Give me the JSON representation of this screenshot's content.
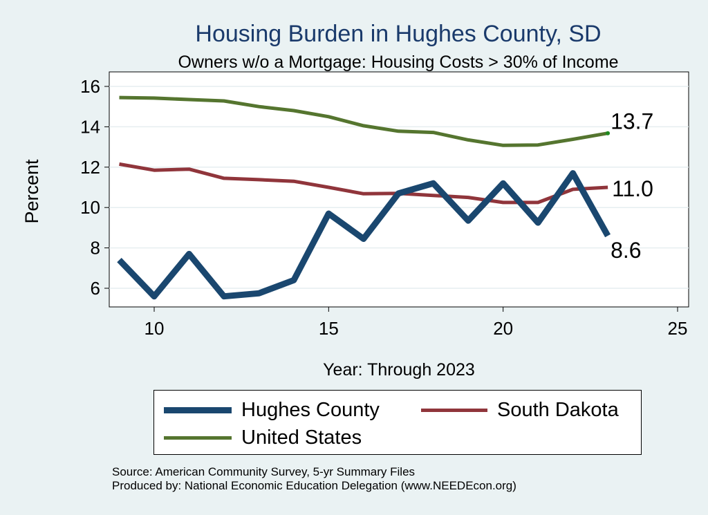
{
  "chart_data": {
    "type": "line",
    "title": "Housing Burden in Hughes County, SD",
    "subtitle": "Owners w/o a Mortgage: Housing Costs > 30% of Income",
    "xlabel": "Year: Through 2023",
    "ylabel": "Percent",
    "xlim": [
      9,
      25
    ],
    "ylim": [
      5,
      16.5
    ],
    "xticks": [
      10,
      15,
      20,
      25
    ],
    "yticks": [
      6,
      8,
      10,
      12,
      14,
      16
    ],
    "grid": true,
    "legend_position": "bottom",
    "x": [
      9,
      10,
      11,
      12,
      13,
      14,
      15,
      16,
      17,
      18,
      19,
      20,
      21,
      22,
      23
    ],
    "series": [
      {
        "name": "Hughes County",
        "color": "#1a476f",
        "values": [
          7.4,
          5.6,
          7.7,
          5.6,
          5.75,
          6.4,
          9.7,
          8.45,
          10.7,
          11.2,
          9.35,
          11.2,
          9.25,
          11.7,
          8.6
        ],
        "end_label": "8.6"
      },
      {
        "name": "South Dakota",
        "color": "#90353b",
        "values": [
          12.15,
          11.85,
          11.9,
          11.45,
          11.38,
          11.3,
          11.0,
          10.68,
          10.7,
          10.6,
          10.5,
          10.25,
          10.25,
          10.9,
          11.0
        ],
        "end_label": "11.0"
      },
      {
        "name": "United States",
        "color": "#55752f",
        "values": [
          15.45,
          15.42,
          15.35,
          15.28,
          15.0,
          14.8,
          14.5,
          14.05,
          13.78,
          13.72,
          13.35,
          13.08,
          13.1,
          13.38,
          13.68
        ],
        "end_label": "13.7"
      }
    ]
  },
  "source": {
    "line1": "Source: American Community Survey, 5-yr Summary Files",
    "line2": "Produced by: National Economic Education Delegation (www.NEEDEcon.org)"
  }
}
